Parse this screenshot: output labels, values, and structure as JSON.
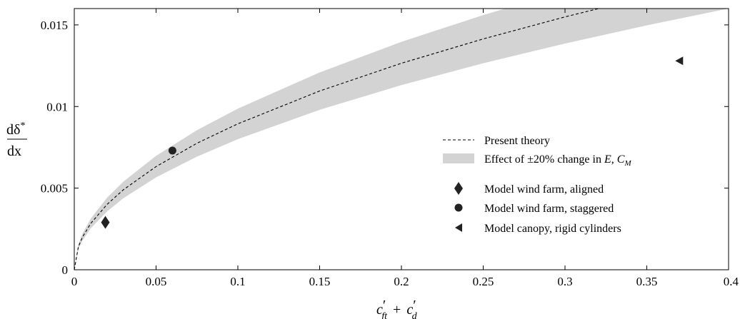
{
  "chart_data": {
    "type": "line",
    "title": "",
    "xlabel": "c'ft + c'd",
    "xlabel_parts": {
      "c1": "c",
      "sub1": "ft",
      "plus": "+",
      "c2": "c",
      "sub2": "d",
      "prime": "′"
    },
    "ylabel": "dδ*/dx",
    "ylabel_parts": {
      "num": "dδ",
      "sup": "*",
      "den": "dx"
    },
    "xlim": [
      0,
      0.4
    ],
    "ylim": [
      0,
      0.016
    ],
    "xticks": [
      "0",
      "0.05",
      "0.1",
      "0.15",
      "0.2",
      "0.25",
      "0.3",
      "0.35",
      "0.4"
    ],
    "xtick_values": [
      0,
      0.05,
      0.1,
      0.15,
      0.2,
      0.25,
      0.3,
      0.35,
      0.4
    ],
    "yticks": [
      "0",
      "0.005",
      "0.01",
      "0.015"
    ],
    "ytick_values": [
      0,
      0.005,
      0.01,
      0.015
    ],
    "grid": false,
    "legend_position": "center-right",
    "series": [
      {
        "name": "Present theory",
        "style": "dashed-line",
        "x": [
          0,
          0.0025,
          0.005,
          0.01,
          0.02,
          0.03,
          0.05,
          0.075,
          0.1,
          0.15,
          0.2,
          0.25,
          0.3,
          0.35,
          0.4
        ],
        "y": [
          0,
          0.00141,
          0.002,
          0.00283,
          0.004,
          0.0049,
          0.00632,
          0.00775,
          0.00894,
          0.01095,
          0.01265,
          0.01414,
          0.01549,
          0.01673,
          0.01789
        ]
      },
      {
        "name": "Effect of ±20% change in E, C_M",
        "style": "shaded-band",
        "x": [
          0,
          0.0025,
          0.005,
          0.01,
          0.02,
          0.03,
          0.05,
          0.075,
          0.1,
          0.15,
          0.2,
          0.25,
          0.3,
          0.35,
          0.4
        ],
        "lower": [
          0,
          0.00127,
          0.00179,
          0.00253,
          0.00357,
          0.00438,
          0.00566,
          0.00693,
          0.008,
          0.0098,
          0.01131,
          0.01265,
          0.01386,
          0.01497,
          0.016
        ],
        "upper": [
          0,
          0.00156,
          0.00221,
          0.00312,
          0.00441,
          0.0054,
          0.00698,
          0.00855,
          0.00987,
          0.01209,
          0.01396,
          0.0156,
          0.01709,
          0.01846,
          0.01974
        ]
      },
      {
        "name": "Model wind farm, aligned",
        "style": "diamond-marker",
        "x": [
          0.019
        ],
        "y": [
          0.0029
        ]
      },
      {
        "name": "Model wind farm, staggered",
        "style": "circle-marker",
        "x": [
          0.06
        ],
        "y": [
          0.0073
        ]
      },
      {
        "name": "Model canopy, rigid cylinders",
        "style": "left-triangle-marker",
        "x": [
          0.37
        ],
        "y": [
          0.0128
        ]
      }
    ],
    "legend": {
      "theory": "Present theory",
      "band_prefix": "Effect of ±20% change in ",
      "band_E": "E",
      "band_sep": ", ",
      "band_C": "C",
      "band_Csub": "M",
      "aligned": "Model wind farm, aligned",
      "staggered": "Model wind farm, staggered",
      "canopy": "Model canopy, rigid cylinders"
    },
    "colors": {
      "band": "#d3d3d3",
      "line": "#000000",
      "marker": "#222222",
      "axis": "#000000"
    }
  }
}
